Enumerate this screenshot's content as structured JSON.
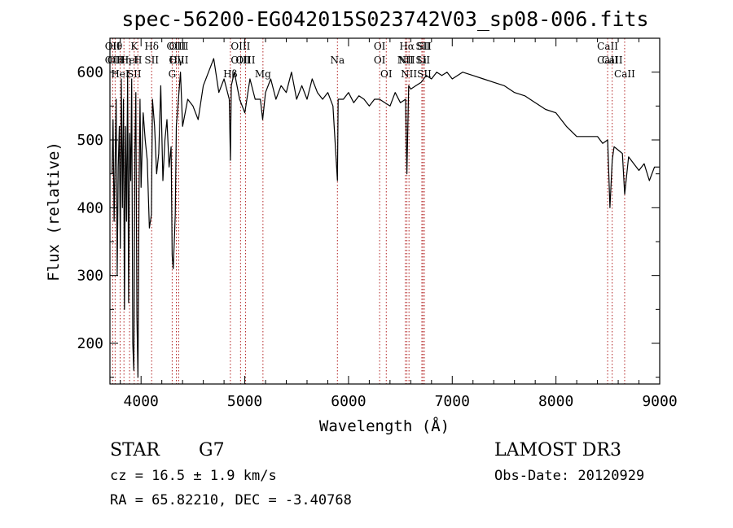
{
  "chart_data": {
    "type": "line",
    "title": "spec-56200-EG042015S023742V03_sp08-006.fits",
    "xlabel": "Wavelength (Å)",
    "ylabel": "Flux (relative)",
    "xlim": [
      3700,
      9000
    ],
    "ylim": [
      140,
      650
    ],
    "xticks": [
      4000,
      5000,
      6000,
      7000,
      8000,
      9000
    ],
    "yticks": [
      200,
      300,
      400,
      500,
      600
    ],
    "grid": false,
    "line_color": "#000000",
    "marker_color": "#b22222",
    "series": [
      {
        "x": [
          3720,
          3730,
          3740,
          3750,
          3760,
          3770,
          3780,
          3790,
          3800,
          3810,
          3820,
          3830,
          3840,
          3850,
          3860,
          3870,
          3880,
          3890,
          3900,
          3910,
          3920,
          3930,
          3940,
          3950,
          3960,
          3970,
          3980,
          3990,
          4000,
          4020,
          4040,
          4060,
          4080,
          4100,
          4110,
          4130,
          4150,
          4170,
          4190,
          4210,
          4230,
          4250,
          4270,
          4290,
          4300,
          4310,
          4320,
          4330,
          4340,
          4360,
          4380,
          4400,
          4450,
          4500,
          4550,
          4600,
          4650,
          4700,
          4750,
          4800,
          4850,
          4861,
          4870,
          4900,
          4950,
          5000,
          5050,
          5100,
          5150,
          5172,
          5200,
          5250,
          5300,
          5350,
          5400,
          5450,
          5500,
          5550,
          5600,
          5650,
          5700,
          5750,
          5800,
          5850,
          5893,
          5900,
          5950,
          6000,
          6050,
          6100,
          6150,
          6200,
          6250,
          6300,
          6350,
          6400,
          6450,
          6500,
          6550,
          6563,
          6580,
          6600,
          6650,
          6700,
          6750,
          6800,
          6850,
          6900,
          6950,
          7000,
          7100,
          7200,
          7300,
          7400,
          7500,
          7600,
          7700,
          7800,
          7900,
          8000,
          8100,
          8200,
          8300,
          8400,
          8450,
          8498,
          8520,
          8542,
          8560,
          8600,
          8640,
          8662,
          8700,
          8750,
          8800,
          8850,
          8900,
          8950,
          9000
        ],
        "y": [
          450,
          530,
          380,
          470,
          560,
          300,
          460,
          520,
          340,
          590,
          400,
          560,
          250,
          520,
          380,
          600,
          260,
          510,
          440,
          590,
          200,
          160,
          480,
          570,
          240,
          150,
          420,
          560,
          430,
          540,
          500,
          470,
          370,
          390,
          560,
          520,
          450,
          480,
          580,
          440,
          500,
          530,
          460,
          490,
          330,
          310,
          350,
          390,
          520,
          560,
          600,
          520,
          560,
          550,
          530,
          580,
          600,
          620,
          570,
          590,
          560,
          470,
          580,
          600,
          560,
          540,
          590,
          560,
          560,
          530,
          570,
          590,
          560,
          580,
          570,
          600,
          560,
          580,
          560,
          590,
          570,
          560,
          570,
          550,
          440,
          560,
          560,
          570,
          555,
          565,
          560,
          550,
          560,
          560,
          555,
          550,
          570,
          555,
          560,
          450,
          580,
          575,
          580,
          585,
          595,
          590,
          600,
          595,
          600,
          590,
          600,
          595,
          590,
          585,
          580,
          570,
          565,
          555,
          545,
          540,
          520,
          505,
          505,
          505,
          495,
          500,
          400,
          470,
          490,
          485,
          480,
          420,
          475,
          465,
          455,
          465,
          440,
          460,
          460
        ]
      }
    ],
    "lines": [
      {
        "wl": 3727,
        "top": "OII",
        "mid": "OII"
      },
      {
        "wl": 3750,
        "top": "Hθ",
        "mid": "OII"
      },
      {
        "wl": 3798,
        "top": "",
        "mid": "HeI"
      },
      {
        "wl": 3835,
        "top": "",
        "mid": "Hη"
      },
      {
        "wl": 3889,
        "top": "",
        "mid": "HeI"
      },
      {
        "wl": 3934,
        "top": "K",
        "mid": "SII"
      },
      {
        "wl": 3969,
        "top": "",
        "mid": "H"
      },
      {
        "wl": 4102,
        "top": "Hδ",
        "mid": "SII"
      },
      {
        "wl": 4300,
        "top": "",
        "mid": "G"
      },
      {
        "wl": 4340,
        "top": "OIII",
        "mid": "Hγ"
      },
      {
        "wl": 4363,
        "top": "OIII",
        "mid": "OIII"
      },
      {
        "wl": 4861,
        "top": "",
        "mid": "Hβ"
      },
      {
        "wl": 4959,
        "top": "OIII",
        "mid": "OIII"
      },
      {
        "wl": 5007,
        "top": "",
        "mid": "OIII"
      },
      {
        "wl": 5175,
        "top": "",
        "mid": "Mg"
      },
      {
        "wl": 5893,
        "top": "",
        "mid": "Na"
      },
      {
        "wl": 6300,
        "top": "OI",
        "mid": "OI"
      },
      {
        "wl": 6364,
        "top": "",
        "mid": "OI"
      },
      {
        "wl": 6548,
        "top": "",
        "mid": "NII"
      },
      {
        "wl": 6563,
        "top": "Hα",
        "mid": "NII"
      },
      {
        "wl": 6583,
        "top": "",
        "mid": "NII"
      },
      {
        "wl": 6707,
        "top": "",
        "mid": "Li"
      },
      {
        "wl": 6717,
        "top": "SII",
        "mid": "SII"
      },
      {
        "wl": 6731,
        "top": "SII",
        "mid": "SII"
      },
      {
        "wl": 8498,
        "top": "CaII",
        "mid": "CaII"
      },
      {
        "wl": 8542,
        "top": "",
        "mid": "CaII"
      },
      {
        "wl": 8662,
        "top": "",
        "mid": "CaII"
      }
    ]
  },
  "info": {
    "class_label": "STAR",
    "subclass": "G7",
    "cz": "cz = 16.5 ± 1.9 km/s",
    "coords": "RA =  65.82210, DEC =  -3.40768",
    "survey": "LAMOST DR3",
    "obs_date": "Obs-Date: 20120929"
  }
}
